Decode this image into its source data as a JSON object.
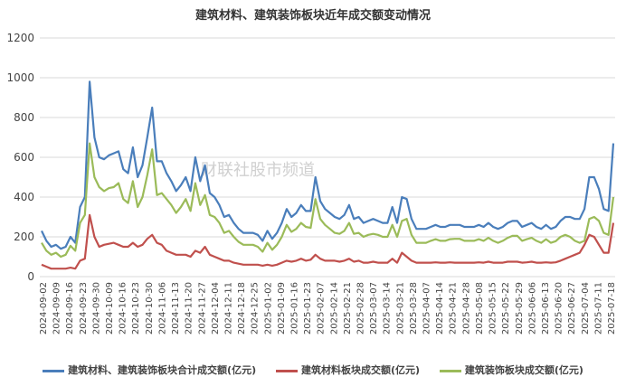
{
  "chart_data": {
    "type": "line",
    "title": "建筑材料、建筑装饰板块近年成交额变动情况",
    "ylim": [
      0,
      1200
    ],
    "yticks": [
      0,
      200,
      400,
      600,
      800,
      1000,
      1200
    ],
    "grid": true,
    "legend_position": "bottom",
    "watermark": "财联社股市频道",
    "x_tick_labels": [
      "2024-09-02",
      "2024-09-09",
      "2024-09-16",
      "2024-09-23",
      "2024-09-30",
      "2024-10-09",
      "2024-10-16",
      "2024-10-23",
      "2024-10-30",
      "2024-11-06",
      "2024-11-13",
      "2024-11-20",
      "2024-11-27",
      "2024-12-04",
      "2024-12-11",
      "2024-12-18",
      "2024-12-25",
      "2025-01-02",
      "2025-01-09",
      "2025-01-16",
      "2025-01-23",
      "2025-02-07",
      "2025-02-14",
      "2025-02-21",
      "2025-02-28",
      "2025-03-07",
      "2025-03-14",
      "2025-03-21",
      "2025-03-28",
      "2025-04-07",
      "2025-04-14",
      "2025-04-21",
      "2025-04-28",
      "2025-05-08",
      "2025-05-15",
      "2025-05-22",
      "2025-05-29",
      "2025-06-06",
      "2025-06-13",
      "2025-06-20",
      "2025-06-27",
      "2025-07-04",
      "2025-07-11",
      "2025-07-18"
    ],
    "series": [
      {
        "name": "建筑材料、建筑装饰板块合计成交额(亿元)",
        "color": "#4a7ebb",
        "values": [
          230,
          180,
          150,
          160,
          140,
          150,
          200,
          170,
          350,
          400,
          980,
          700,
          600,
          590,
          610,
          620,
          630,
          540,
          520,
          650,
          500,
          560,
          700,
          850,
          580,
          580,
          520,
          480,
          430,
          460,
          500,
          430,
          600,
          480,
          560,
          420,
          400,
          360,
          300,
          310,
          270,
          240,
          220,
          220,
          220,
          210,
          180,
          230,
          190,
          220,
          270,
          340,
          300,
          320,
          360,
          330,
          330,
          500,
          380,
          340,
          320,
          300,
          290,
          310,
          360,
          290,
          300,
          270,
          280,
          290,
          280,
          270,
          270,
          350,
          270,
          400,
          390,
          290,
          240,
          240,
          240,
          250,
          260,
          250,
          250,
          260,
          260,
          260,
          250,
          250,
          250,
          260,
          250,
          270,
          250,
          240,
          250,
          270,
          280,
          280,
          250,
          260,
          270,
          250,
          240,
          260,
          240,
          250,
          280,
          300,
          300,
          290,
          290,
          340,
          500,
          500,
          440,
          340,
          330,
          670
        ]
      },
      {
        "name": "建筑材料板块成交额(亿元)",
        "color": "#c0504d",
        "values": [
          60,
          50,
          40,
          40,
          40,
          40,
          45,
          40,
          80,
          90,
          310,
          200,
          150,
          160,
          165,
          170,
          160,
          150,
          150,
          170,
          150,
          160,
          190,
          210,
          170,
          160,
          130,
          120,
          110,
          110,
          110,
          100,
          130,
          120,
          150,
          110,
          100,
          90,
          80,
          80,
          70,
          65,
          60,
          60,
          60,
          60,
          55,
          60,
          55,
          60,
          70,
          80,
          75,
          80,
          90,
          80,
          85,
          110,
          90,
          80,
          80,
          80,
          75,
          80,
          90,
          75,
          80,
          70,
          70,
          75,
          70,
          70,
          70,
          90,
          70,
          120,
          100,
          80,
          70,
          70,
          70,
          70,
          72,
          70,
          70,
          72,
          70,
          70,
          70,
          70,
          70,
          72,
          70,
          75,
          70,
          70,
          70,
          75,
          75,
          75,
          70,
          72,
          75,
          70,
          70,
          72,
          70,
          72,
          80,
          90,
          100,
          110,
          120,
          160,
          210,
          200,
          160,
          120,
          120,
          270
        ]
      },
      {
        "name": "建筑装饰板块成交额(亿元)",
        "color": "#9bbb59",
        "values": [
          170,
          130,
          110,
          120,
          100,
          110,
          155,
          130,
          270,
          310,
          670,
          500,
          450,
          430,
          445,
          450,
          470,
          390,
          370,
          480,
          350,
          400,
          510,
          640,
          410,
          420,
          390,
          360,
          320,
          350,
          390,
          330,
          470,
          360,
          410,
          310,
          300,
          270,
          220,
          230,
          200,
          175,
          160,
          160,
          160,
          150,
          125,
          170,
          135,
          160,
          200,
          260,
          225,
          240,
          270,
          250,
          245,
          390,
          290,
          260,
          240,
          220,
          215,
          230,
          270,
          215,
          220,
          200,
          210,
          215,
          210,
          200,
          200,
          260,
          200,
          280,
          290,
          210,
          170,
          170,
          170,
          180,
          188,
          180,
          180,
          188,
          190,
          190,
          180,
          180,
          180,
          188,
          180,
          195,
          180,
          170,
          180,
          195,
          205,
          205,
          180,
          188,
          195,
          180,
          170,
          188,
          170,
          178,
          200,
          210,
          200,
          180,
          170,
          180,
          290,
          300,
          280,
          220,
          210,
          400
        ]
      }
    ]
  }
}
